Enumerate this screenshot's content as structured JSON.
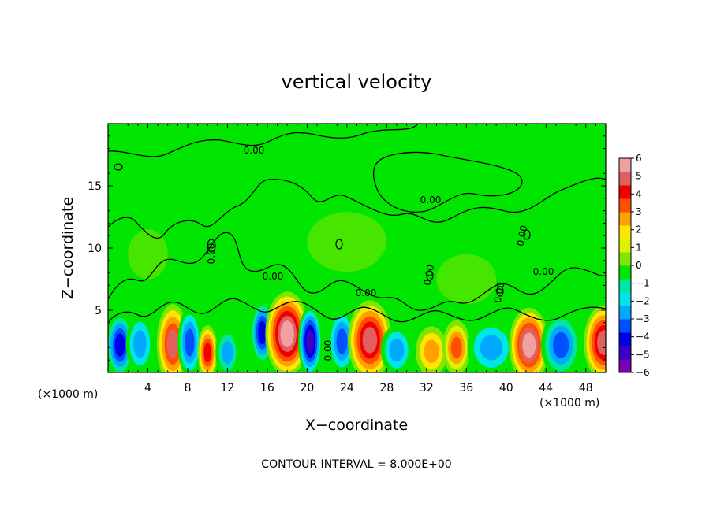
{
  "chart_data": {
    "type": "heatmap",
    "title": "vertical velocity",
    "xlabel": "X−coordinate",
    "ylabel": "Z−coordinate",
    "x_unit_label": "(×1000 m)",
    "x_unit_label_right": "(×1000 m)",
    "xlim": [
      0,
      50
    ],
    "ylim": [
      0,
      20
    ],
    "x_ticks": [
      4,
      8,
      12,
      16,
      20,
      24,
      28,
      32,
      36,
      40,
      44,
      48
    ],
    "x_tick_labels": [
      "4",
      "8",
      "12",
      "16",
      "20",
      "24",
      "28",
      "32",
      "36",
      "40",
      "44",
      "48"
    ],
    "y_ticks": [
      5,
      10,
      15
    ],
    "y_tick_labels": [
      "5",
      "10",
      "15"
    ],
    "colorbar": {
      "min": -6,
      "max": 6,
      "labels": [
        "6",
        "5",
        "4",
        "3",
        "2",
        "1",
        "0",
        "−1",
        "−2",
        "−3",
        "−4",
        "−5",
        "−6"
      ],
      "colors": [
        "#7a00b4",
        "#3a00c8",
        "#0000e6",
        "#0050ff",
        "#00a8ff",
        "#00e6e6",
        "#00e6a0",
        "#00e600",
        "#80e600",
        "#dcf000",
        "#ffe600",
        "#ffa000",
        "#ff5000",
        "#f00000",
        "#e06060",
        "#f0a0a0"
      ]
    },
    "contour_labels": [
      "0.00",
      "0.00",
      "0.00",
      "0.00",
      "0.00",
      "0.00",
      "0.00",
      "0.00",
      "0.00",
      "0.00"
    ],
    "cells": [
      {
        "x": 1.2,
        "z": 2.2,
        "w": -4.5,
        "sx": 0.7,
        "sz": 1.3
      },
      {
        "x": 3.2,
        "z": 2.3,
        "w": -3.0,
        "sx": 0.7,
        "sz": 1.2
      },
      {
        "x": 6.5,
        "z": 2.3,
        "w": 5.0,
        "sx": 0.8,
        "sz": 1.6
      },
      {
        "x": 8.2,
        "z": 2.4,
        "w": -4.0,
        "sx": 0.6,
        "sz": 1.4
      },
      {
        "x": 10.0,
        "z": 1.6,
        "w": 4.5,
        "sx": 0.5,
        "sz": 1.1
      },
      {
        "x": 12.0,
        "z": 1.6,
        "w": -2.5,
        "sx": 0.6,
        "sz": 1.0
      },
      {
        "x": 15.5,
        "z": 3.2,
        "w": -4.5,
        "sx": 0.6,
        "sz": 1.3
      },
      {
        "x": 18.0,
        "z": 3.1,
        "w": 6.5,
        "sx": 1.1,
        "sz": 1.7
      },
      {
        "x": 20.3,
        "z": 2.5,
        "w": -5.5,
        "sx": 0.6,
        "sz": 1.4
      },
      {
        "x": 23.5,
        "z": 2.5,
        "w": -4.0,
        "sx": 0.7,
        "sz": 1.3
      },
      {
        "x": 26.3,
        "z": 2.6,
        "w": 5.5,
        "sx": 1.1,
        "sz": 1.6
      },
      {
        "x": 29.0,
        "z": 1.8,
        "w": -3.0,
        "sx": 0.8,
        "sz": 1.0
      },
      {
        "x": 32.5,
        "z": 1.7,
        "w": 3.0,
        "sx": 0.8,
        "sz": 1.0
      },
      {
        "x": 35.0,
        "z": 2.0,
        "w": 3.5,
        "sx": 0.7,
        "sz": 1.1
      },
      {
        "x": 38.5,
        "z": 2.0,
        "w": -3.0,
        "sx": 1.2,
        "sz": 1.1
      },
      {
        "x": 42.3,
        "z": 2.2,
        "w": 6.0,
        "sx": 1.0,
        "sz": 1.5
      },
      {
        "x": 45.5,
        "z": 2.2,
        "w": -3.5,
        "sx": 1.0,
        "sz": 1.3
      },
      {
        "x": 49.8,
        "z": 2.4,
        "w": 5.5,
        "sx": 1.0,
        "sz": 1.5
      }
    ],
    "upper_field": [
      {
        "x": 4.0,
        "z": 9.5,
        "w": 0.7,
        "sx": 1.0,
        "sz": 1.0
      },
      {
        "x": 13.5,
        "z": 11.0,
        "w": -0.7,
        "sx": 1.5,
        "sz": 1.5
      },
      {
        "x": 24.0,
        "z": 10.5,
        "w": 0.6,
        "sx": 2.0,
        "sz": 1.2
      },
      {
        "x": 30.0,
        "z": 8.5,
        "w": -0.7,
        "sx": 1.5,
        "sz": 1.0
      },
      {
        "x": 46.0,
        "z": 10.5,
        "w": -0.6,
        "sx": 2.0,
        "sz": 1.2
      },
      {
        "x": 36.0,
        "z": 7.5,
        "w": 0.6,
        "sx": 1.5,
        "sz": 1.0
      }
    ],
    "footer": "CONTOUR INTERVAL =  8.000E+00"
  }
}
